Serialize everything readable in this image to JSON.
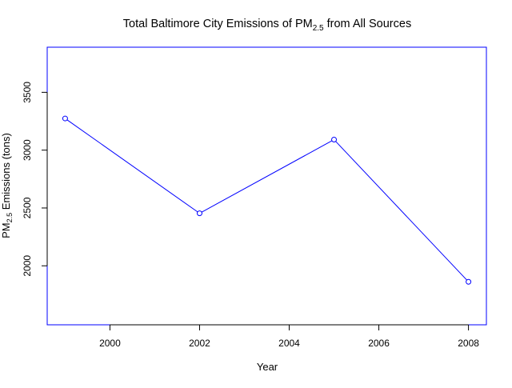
{
  "chart_data": {
    "type": "line",
    "title": {
      "prefix": "Total Baltimore City Emissions of PM",
      "subscript": "2.5",
      "suffix": " from All Sources"
    },
    "xlabel": "Year",
    "ylabel": {
      "prefix": "PM",
      "subscript": "2.5",
      "suffix": " Emissions (tons)"
    },
    "x": [
      1999,
      2002,
      2005,
      2008
    ],
    "series": [
      {
        "values": [
          3274,
          2454,
          3091,
          1862
        ]
      }
    ],
    "xlim": [
      1998.6,
      2008.4
    ],
    "ylim": [
      1490,
      3890
    ],
    "x_ticks": [
      "2000",
      "2002",
      "2004",
      "2006",
      "2008"
    ],
    "y_ticks": [
      "2000",
      "2500",
      "3000",
      "3500"
    ],
    "grid": false,
    "colors": {
      "series": "#0000ff",
      "frame": "#0000ff",
      "axis": "#000000"
    },
    "markers": "open-circle"
  }
}
